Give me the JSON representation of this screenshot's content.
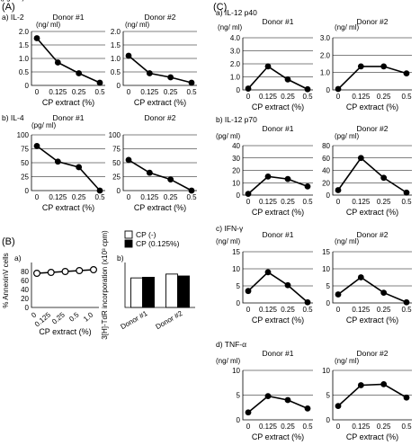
{
  "sections": {
    "a": "(A)",
    "b": "(B)",
    "c": "(C)"
  },
  "legend": {
    "open": "CP (-)",
    "filled": "CP (0.125%)"
  },
  "chart_data": [
    {
      "id": "A-IL2-d1",
      "type": "line",
      "panel_label": "a) IL-2",
      "title": "Donor #1",
      "unit": "(ng/ ml)",
      "categories": [
        "0",
        "0.125",
        "0.25",
        "0.5"
      ],
      "xlabel": "CP extract (%)",
      "ylim": [
        0,
        2.0
      ],
      "yticks": [
        "0",
        "0.5",
        "1.0",
        "1.5",
        "2.0"
      ],
      "grid": true,
      "values": [
        1.75,
        0.85,
        0.45,
        0.1
      ]
    },
    {
      "id": "A-IL2-d2",
      "type": "line",
      "panel_label": "",
      "title": "Donor #2",
      "unit": "(ng/ ml)",
      "categories": [
        "0",
        "0.125",
        "0.25",
        "0.5"
      ],
      "xlabel": "CP extract (%)",
      "ylim": [
        0,
        2.0
      ],
      "yticks": [
        "0",
        "0.5",
        "1.0",
        "1.5",
        "2.0"
      ],
      "grid": true,
      "values": [
        1.1,
        0.45,
        0.3,
        0.1
      ]
    },
    {
      "id": "A-IL4-d1",
      "type": "line",
      "panel_label": "b) IL-4",
      "title": "Donor #1",
      "unit": "(pg/ ml)",
      "categories": [
        "0",
        "0.125",
        "0.25",
        "0.5"
      ],
      "xlabel": "CP extract (%)",
      "ylim": [
        0,
        100
      ],
      "yticks": [
        "0",
        "25",
        "50",
        "75",
        "100"
      ],
      "grid": true,
      "values": [
        80,
        52,
        42,
        0
      ]
    },
    {
      "id": "A-IL4-d2",
      "type": "line",
      "panel_label": "",
      "title": "Donor #2",
      "unit": "(pg/ ml)",
      "categories": [
        "0",
        "0.125",
        "0.25",
        "0.5"
      ],
      "xlabel": "CP extract (%)",
      "ylim": [
        0,
        100
      ],
      "yticks": [
        "0",
        "25",
        "50",
        "75",
        "100"
      ],
      "grid": true,
      "values": [
        55,
        32,
        20,
        0
      ]
    },
    {
      "id": "B-annexin",
      "type": "line",
      "panel_label": "a)",
      "title": "",
      "unit": "",
      "categories": [
        "0",
        "0.125",
        "0.25",
        "0.5",
        "1.0"
      ],
      "xlabel": "CP extract (%)",
      "ylabel": "% AnnexinV cells",
      "ylim": [
        0,
        100
      ],
      "yticks": [
        "0",
        "20",
        "40",
        "60",
        "80"
      ],
      "grid": false,
      "rotate_xticks": true,
      "open_markers": true,
      "values": [
        76,
        78,
        80,
        82,
        84
      ]
    },
    {
      "id": "B-tdr",
      "type": "bar",
      "panel_label": "b)",
      "title": "",
      "unit": "",
      "categories": [
        "Donor #1",
        "Donor #2"
      ],
      "xlabel": "",
      "ylabel": "3[H]-TdR incorporation (x10³ cpm)",
      "ylim": [
        0,
        70
      ],
      "yticks": [],
      "grid": false,
      "rotate_xticks": true,
      "series": [
        {
          "name": "CP (-)",
          "values": [
            46,
            52
          ]
        },
        {
          "name": "CP (0.125%)",
          "values": [
            47,
            49
          ]
        }
      ]
    },
    {
      "id": "C-IL12p40-d1",
      "type": "line",
      "panel_label": "a) IL-12 p40",
      "title": "Donor #1",
      "unit": "(ng/ ml)",
      "categories": [
        "0",
        "0.125",
        "0.25",
        "0.5"
      ],
      "xlabel": "CP extract (%)",
      "ylim": [
        0,
        4.0
      ],
      "yticks": [
        "0",
        "1.0",
        "2.0",
        "3.0",
        "4.0"
      ],
      "grid": true,
      "values": [
        0.1,
        1.8,
        0.8,
        0.05
      ]
    },
    {
      "id": "C-IL12p40-d2",
      "type": "line",
      "panel_label": "",
      "title": "Donor #2",
      "unit": "(ng/ ml)",
      "categories": [
        "0",
        "0.125",
        "0.25",
        "0.5"
      ],
      "xlabel": "CP extract (%)",
      "ylim": [
        0,
        3.0
      ],
      "yticks": [
        "0",
        "1.0",
        "2.0",
        "3.0"
      ],
      "grid": true,
      "values": [
        0.05,
        1.35,
        1.35,
        0.95
      ]
    },
    {
      "id": "C-IL12p70-d1",
      "type": "line",
      "panel_label": "b) IL-12 p70",
      "title": "Donor #1",
      "unit": "(pg/ ml)",
      "categories": [
        "0",
        "0.125",
        "0.25",
        "0.5"
      ],
      "xlabel": "CP extract (%)",
      "ylim": [
        0,
        40
      ],
      "yticks": [
        "0",
        "10",
        "20",
        "30",
        "40"
      ],
      "grid": true,
      "values": [
        1,
        15,
        13,
        7
      ]
    },
    {
      "id": "C-IL12p70-d2",
      "type": "line",
      "panel_label": "",
      "title": "Donor #2",
      "unit": "(pg/ ml)",
      "categories": [
        "0",
        "0.125",
        "0.25",
        "0.5"
      ],
      "xlabel": "CP extract (%)",
      "ylim": [
        0,
        80
      ],
      "yticks": [
        "0",
        "20",
        "40",
        "60",
        "80"
      ],
      "grid": true,
      "values": [
        8,
        60,
        28,
        4
      ]
    },
    {
      "id": "C-IFNg-d1",
      "type": "line",
      "panel_label": "c) IFN-γ",
      "title": "Donor #1",
      "unit": "(ng/ ml)",
      "categories": [
        "0",
        "0.125",
        "0.25",
        "0.5"
      ],
      "xlabel": "CP extract (%)",
      "ylim": [
        0,
        15
      ],
      "yticks": [
        "0",
        "5",
        "10",
        "15"
      ],
      "grid": true,
      "values": [
        3.5,
        9.0,
        5.2,
        0.2
      ]
    },
    {
      "id": "C-IFNg-d2",
      "type": "line",
      "panel_label": "",
      "title": "Donor #2",
      "unit": "(ng/ ml)",
      "categories": [
        "0",
        "0.125",
        "0.25",
        "0.5"
      ],
      "xlabel": "CP extract (%)",
      "ylim": [
        0,
        15
      ],
      "yticks": [
        "0",
        "5",
        "10",
        "15"
      ],
      "grid": true,
      "values": [
        2.5,
        7.5,
        3.0,
        0.2
      ]
    },
    {
      "id": "C-TNFa-d1",
      "type": "line",
      "panel_label": "d) TNF-α",
      "title": "Donor #1",
      "unit": "(ng/ ml)",
      "categories": [
        "0",
        "0.125",
        "0.25",
        "0.5"
      ],
      "xlabel": "CP extract (%)",
      "ylim": [
        0,
        10
      ],
      "yticks": [
        "0",
        "5",
        "10"
      ],
      "grid": true,
      "values": [
        1.5,
        4.8,
        4.0,
        2.3
      ]
    },
    {
      "id": "C-TNFa-d2",
      "type": "line",
      "panel_label": "",
      "title": "Donor #2",
      "unit": "(ng/ ml)",
      "categories": [
        "0",
        "0.125",
        "0.25",
        "0.5"
      ],
      "xlabel": "CP extract (%)",
      "ylim": [
        0,
        10
      ],
      "yticks": [
        "0",
        "5",
        "10"
      ],
      "grid": true,
      "values": [
        2.8,
        7.0,
        7.2,
        4.5
      ]
    }
  ]
}
